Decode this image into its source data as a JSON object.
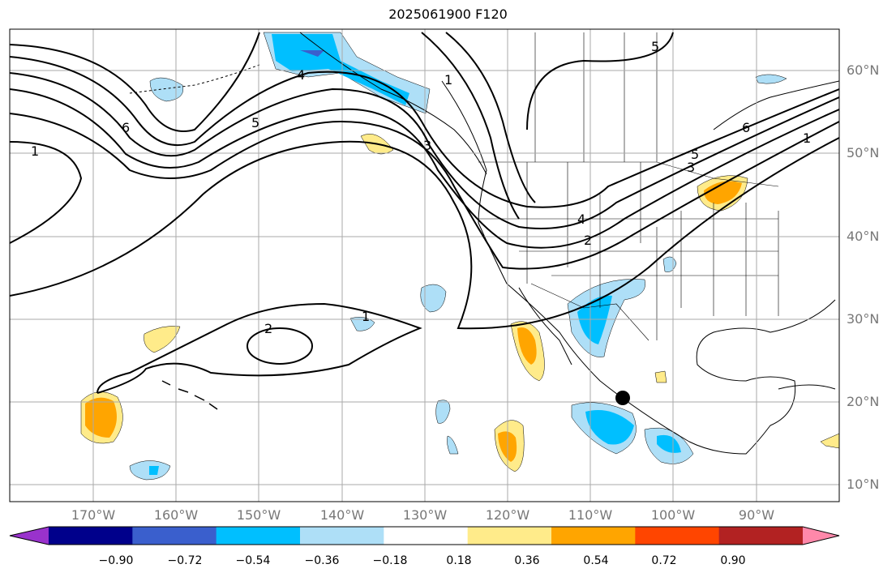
{
  "title": "2025061900 F120",
  "lat_labels": [
    "60°N",
    "50°N",
    "40°N",
    "30°N",
    "20°N",
    "10°N"
  ],
  "lon_labels": [
    "170°W",
    "160°W",
    "150°W",
    "140°W",
    "130°W",
    "120°W",
    "110°W",
    "100°W",
    "90°W"
  ],
  "contour_labels": [
    "1",
    "6",
    "5",
    "4",
    "1",
    "3",
    "5",
    "6",
    "1",
    "5",
    "3",
    "4",
    "2",
    "2",
    "1"
  ],
  "colorbar": {
    "ticks": [
      "−0.90",
      "−0.72",
      "−0.54",
      "−0.36",
      "−0.18",
      "0.18",
      "0.36",
      "0.54",
      "0.72",
      "0.90"
    ],
    "colors": [
      "#9932cc",
      "#00008b",
      "#3a5fcd",
      "#00bfff",
      "#aedff7",
      "#ffffff",
      "#ffeb8a",
      "#ffa500",
      "#ff4500",
      "#b22222",
      "#ff88aa"
    ]
  }
}
